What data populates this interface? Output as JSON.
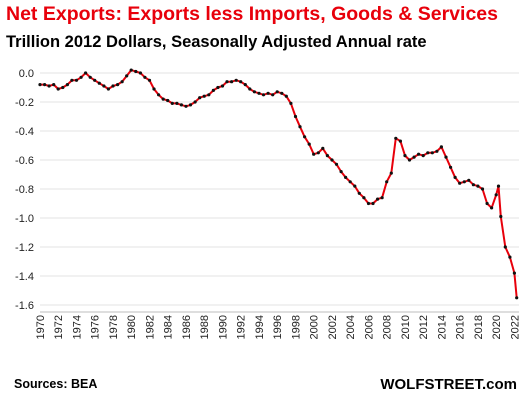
{
  "title": "Net Exports:  Exports less Imports,  Goods & Services",
  "subtitle": "Trillion 2012 Dollars, Seasonally Adjusted Annual rate",
  "source": "Sources: BEA",
  "brand": "WOLFSTREET.com",
  "colors": {
    "title": "#e8000b",
    "line": "#e8000b",
    "points": "#111111",
    "grid": "#e3e3e3"
  },
  "chart_data": {
    "type": "line",
    "title": "Net Exports:  Exports less Imports,  Goods & Services",
    "subtitle": "Trillion 2012 Dollars, Seasonally Adjusted Annual rate",
    "ylim": [
      -1.6,
      0.0
    ],
    "yticks": [
      0.0,
      -0.2,
      -0.4,
      -0.6,
      -0.8,
      -1.0,
      -1.2,
      -1.4,
      -1.6
    ],
    "ytick_labels": [
      "0.0",
      "-0.2",
      "-0.4",
      "-0.6",
      "-0.8",
      "-1.0",
      "-1.2",
      "-1.4",
      "-1.6"
    ],
    "xlim": [
      1970,
      2022.5
    ],
    "xticks": [
      1970,
      1972,
      1974,
      1976,
      1978,
      1980,
      1982,
      1984,
      1986,
      1988,
      1990,
      1992,
      1994,
      1996,
      1998,
      2000,
      2002,
      2004,
      2006,
      2008,
      2010,
      2012,
      2014,
      2016,
      2018,
      2020,
      2022
    ],
    "xtick_labels": [
      "1970",
      "1972",
      "1974",
      "1976",
      "1978",
      "1980",
      "1982",
      "1984",
      "1986",
      "1988",
      "1990",
      "1992",
      "1994",
      "1996",
      "1998",
      "2000",
      "2002",
      "2004",
      "2006",
      "2008",
      "2010",
      "2012",
      "2014",
      "2016",
      "2018",
      "2020",
      "2022"
    ],
    "grid": "horizontal",
    "series": [
      {
        "x": [
          1970.0,
          1970.5,
          1971.0,
          1971.5,
          1972.0,
          1972.5,
          1973.0,
          1973.5,
          1974.0,
          1974.5,
          1975.0,
          1975.5,
          1976.0,
          1976.5,
          1977.0,
          1977.5,
          1978.0,
          1978.5,
          1979.0,
          1979.5,
          1980.0,
          1980.5,
          1981.0,
          1981.5,
          1982.0,
          1982.5,
          1983.0,
          1983.5,
          1984.0,
          1984.5,
          1985.0,
          1985.5,
          1986.0,
          1986.5,
          1987.0,
          1987.5,
          1988.0,
          1988.5,
          1989.0,
          1989.5,
          1990.0,
          1990.5,
          1991.0,
          1991.5,
          1992.0,
          1992.5,
          1993.0,
          1993.5,
          1994.0,
          1994.5,
          1995.0,
          1995.5,
          1996.0,
          1996.5,
          1997.0,
          1997.5,
          1998.0,
          1998.5,
          1999.0,
          1999.5,
          2000.0,
          2000.5,
          2001.0,
          2001.5,
          2002.0,
          2002.5,
          2003.0,
          2003.5,
          2004.0,
          2004.5,
          2005.0,
          2005.5,
          2006.0,
          2006.5,
          2007.0,
          2007.5,
          2008.0,
          2008.5,
          2009.0,
          2009.5,
          2010.0,
          2010.5,
          2011.0,
          2011.5,
          2012.0,
          2012.5,
          2013.0,
          2013.5,
          2014.0,
          2014.5,
          2015.0,
          2015.5,
          2016.0,
          2016.5,
          2017.0,
          2017.5,
          2018.0,
          2018.5,
          2019.0,
          2019.5,
          2020.0,
          2020.25,
          2020.5,
          2021.0,
          2021.5,
          2022.0,
          2022.25
        ],
        "y": [
          -0.08,
          -0.08,
          -0.09,
          -0.08,
          -0.11,
          -0.1,
          -0.08,
          -0.05,
          -0.05,
          -0.03,
          0.0,
          -0.03,
          -0.05,
          -0.07,
          -0.09,
          -0.11,
          -0.09,
          -0.08,
          -0.06,
          -0.02,
          0.02,
          0.01,
          0.0,
          -0.03,
          -0.05,
          -0.11,
          -0.15,
          -0.18,
          -0.19,
          -0.21,
          -0.21,
          -0.22,
          -0.23,
          -0.22,
          -0.2,
          -0.17,
          -0.16,
          -0.15,
          -0.12,
          -0.1,
          -0.09,
          -0.06,
          -0.06,
          -0.05,
          -0.06,
          -0.08,
          -0.11,
          -0.13,
          -0.14,
          -0.15,
          -0.14,
          -0.15,
          -0.13,
          -0.14,
          -0.16,
          -0.21,
          -0.3,
          -0.37,
          -0.44,
          -0.49,
          -0.56,
          -0.55,
          -0.52,
          -0.57,
          -0.6,
          -0.63,
          -0.68,
          -0.72,
          -0.75,
          -0.78,
          -0.83,
          -0.86,
          -0.9,
          -0.9,
          -0.87,
          -0.86,
          -0.75,
          -0.69,
          -0.45,
          -0.47,
          -0.57,
          -0.6,
          -0.58,
          -0.56,
          -0.57,
          -0.55,
          -0.55,
          -0.54,
          -0.51,
          -0.58,
          -0.65,
          -0.72,
          -0.76,
          -0.75,
          -0.74,
          -0.77,
          -0.78,
          -0.8,
          -0.9,
          -0.93,
          -0.84,
          -0.78,
          -0.99,
          -1.2,
          -1.27,
          -1.38,
          -1.55
        ]
      }
    ]
  }
}
